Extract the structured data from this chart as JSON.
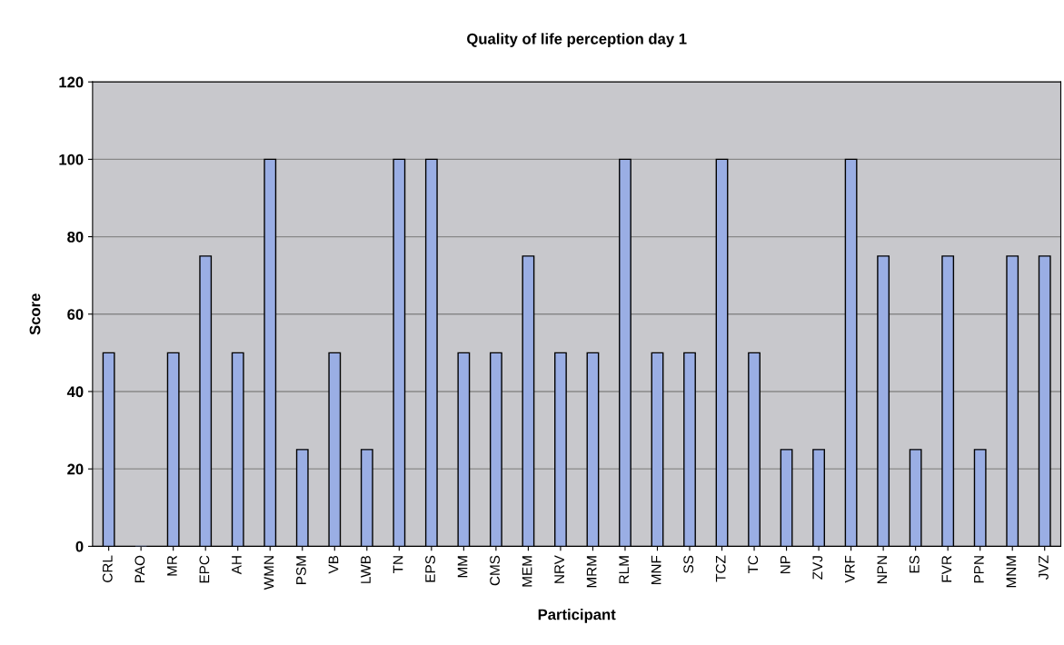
{
  "chart_data": {
    "type": "bar",
    "title": "Quality of life perception day 1",
    "xlabel": "Participant",
    "ylabel": "Score",
    "categories": [
      "CRL",
      "PAO",
      "MR",
      "EPC",
      "AH",
      "WMN",
      "PSM",
      "VB",
      "LWB",
      "TN",
      "EPS",
      "MM",
      "CMS",
      "MEM",
      "NRV",
      "MRM",
      "RLM",
      "MNF",
      "SS",
      "TCZ",
      "TC",
      "NP",
      "ZVJ",
      "VRF",
      "NPN",
      "ES",
      "FVR",
      "PPN",
      "MNM",
      "JVZ"
    ],
    "values": [
      50,
      0,
      50,
      75,
      50,
      100,
      25,
      50,
      25,
      100,
      100,
      50,
      50,
      75,
      50,
      50,
      100,
      50,
      50,
      100,
      50,
      25,
      25,
      100,
      75,
      25,
      75,
      25,
      75,
      75
    ],
    "color": "#9aaee4",
    "ylim": [
      0,
      120
    ],
    "yticks": [
      0,
      20,
      40,
      60,
      80,
      100,
      120
    ],
    "grid": "y",
    "legend": false
  }
}
